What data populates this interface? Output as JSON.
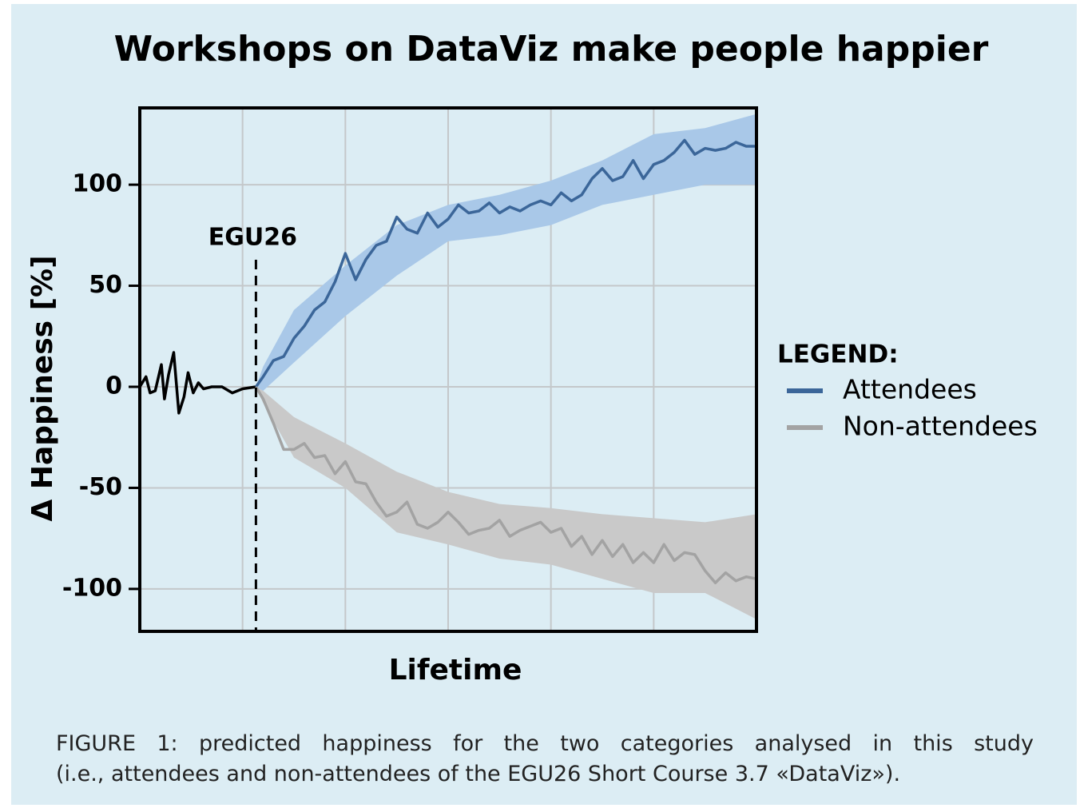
{
  "chart_data": {
    "type": "line",
    "title": "Workshops on DataViz make people happier",
    "xlabel": "Lifetime",
    "ylabel": "Δ Happiness [%]",
    "xlim": [
      0,
      60
    ],
    "xticks": [
      10,
      20,
      30,
      40,
      50
    ],
    "ylim": [
      -121,
      138
    ],
    "yticks": [
      -100,
      -50,
      0,
      50,
      100
    ],
    "grid": true,
    "legend": "right",
    "legend_title": "LEGEND:",
    "annotation": {
      "label": "EGU26",
      "x": 11.3
    },
    "series": [
      {
        "color": "#000000",
        "x": [
          0,
          0.6,
          1,
          1.5,
          2.1,
          2.4,
          2.8,
          3.3,
          3.8,
          4.3,
          4.7,
          5.2,
          5.7,
          6.2,
          7,
          8,
          9,
          10,
          11.3
        ],
        "values": [
          0,
          5,
          -3,
          -2,
          11,
          -6,
          6,
          17,
          -13,
          -5,
          7,
          -3,
          2,
          -1,
          0,
          0,
          -3,
          -1,
          0
        ]
      },
      {
        "name": "Attendees",
        "color": "#3b6699",
        "band_color": "#a9c8e8",
        "x": [
          11.3,
          12,
          13,
          14,
          15,
          16,
          17,
          18,
          19,
          20,
          21,
          22,
          23,
          24,
          25,
          26,
          27,
          28,
          29,
          30,
          31,
          32,
          33,
          34,
          35,
          36,
          37,
          38,
          39,
          40,
          41,
          42,
          43,
          44,
          45,
          46,
          47,
          48,
          49,
          50,
          51,
          52,
          53,
          54,
          55,
          56,
          57,
          58,
          59,
          60
        ],
        "values": [
          0,
          5,
          13,
          15,
          24,
          30,
          38,
          42,
          52,
          66,
          53,
          63,
          70,
          72,
          84,
          78,
          76,
          86,
          79,
          83,
          90,
          86,
          87,
          91,
          86,
          89,
          87,
          90,
          92,
          90,
          96,
          92,
          95,
          103,
          108,
          102,
          104,
          112,
          103,
          110,
          112,
          116,
          122,
          115,
          118,
          117,
          118,
          121,
          119,
          119
        ],
        "band": {
          "x": [
            11.3,
            12,
            15,
            20,
            25,
            30,
            35,
            40,
            45,
            50,
            55,
            60
          ],
          "upper": [
            0,
            10,
            38,
            60,
            80,
            90,
            95,
            102,
            112,
            125,
            128,
            135
          ],
          "lower": [
            0,
            -2,
            12,
            35,
            55,
            72,
            75,
            80,
            90,
            95,
            100,
            100
          ]
        }
      },
      {
        "name": "Non-attendees",
        "color": "#a3a3a3",
        "band_color": "#c9c9c9",
        "x": [
          11.3,
          12,
          13,
          14,
          15,
          16,
          17,
          18,
          19,
          20,
          21,
          22,
          23,
          24,
          25,
          26,
          27,
          28,
          29,
          30,
          31,
          32,
          33,
          34,
          35,
          36,
          37,
          38,
          39,
          40,
          41,
          42,
          43,
          44,
          45,
          46,
          47,
          48,
          49,
          50,
          51,
          52,
          53,
          54,
          55,
          56,
          57,
          58,
          59,
          60
        ],
        "values": [
          0,
          -6,
          -18,
          -31,
          -31,
          -28,
          -35,
          -34,
          -43,
          -37,
          -47,
          -48,
          -57,
          -64,
          -62,
          -57,
          -68,
          -70,
          -67,
          -62,
          -67,
          -73,
          -71,
          -70,
          -66,
          -74,
          -71,
          -69,
          -67,
          -72,
          -70,
          -79,
          -74,
          -83,
          -76,
          -84,
          -78,
          -87,
          -82,
          -87,
          -78,
          -86,
          -82,
          -83,
          -91,
          -97,
          -92,
          -96,
          -94,
          -95
        ],
        "band": {
          "x": [
            11.3,
            12,
            15,
            20,
            25,
            30,
            35,
            40,
            45,
            50,
            55,
            60
          ],
          "upper": [
            0,
            -2,
            -15,
            -28,
            -42,
            -52,
            -58,
            -60,
            -63,
            -65,
            -67,
            -63
          ],
          "lower": [
            0,
            -8,
            -35,
            -50,
            -72,
            -78,
            -85,
            -88,
            -95,
            -102,
            -102,
            -115
          ]
        }
      }
    ]
  },
  "caption": [
    "FIGURE 1: predicted happiness for the two categories analysed in this study",
    "(i.e., attendees and non-attendees of the EGU26 Short Course 3.7 «DataViz»)."
  ]
}
